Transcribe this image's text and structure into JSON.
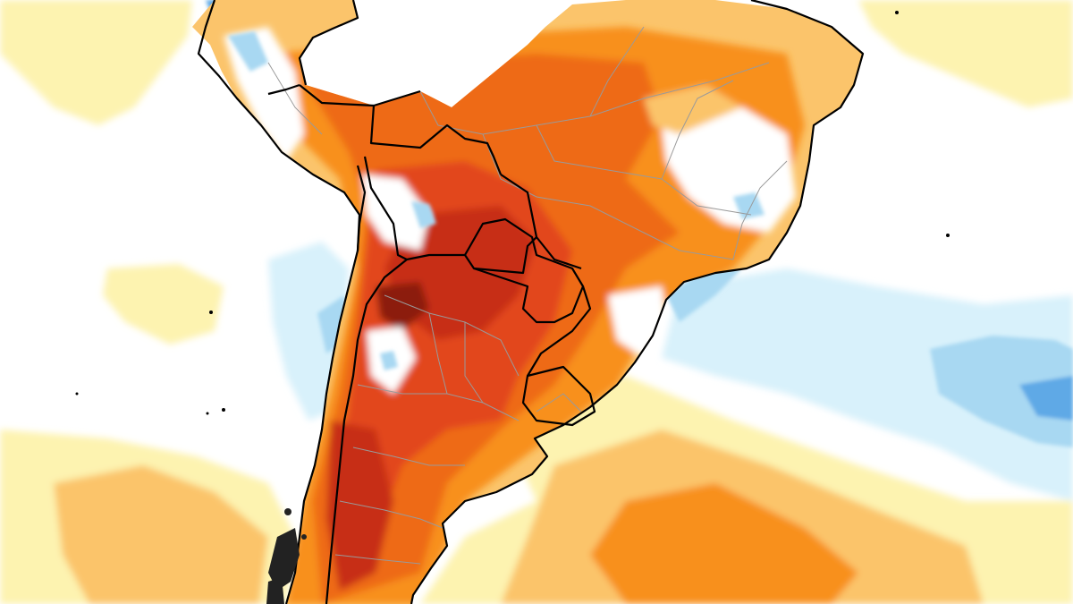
{
  "map": {
    "region": "South America",
    "colors": {
      "ocean_background": "#ffffff",
      "neutral_white": "#ffffff",
      "anomaly_pale_yellow": "#fdf3b0",
      "anomaly_light_orange": "#fbc46b",
      "anomaly_orange": "#f8901e",
      "anomaly_dark_orange": "#ee6a12",
      "anomaly_red_orange": "#e2461c",
      "anomaly_red": "#c72d16",
      "anomaly_dark_red": "#8c1c10",
      "anomaly_pale_blue": "#d8f1fb",
      "anomaly_light_blue": "#a8d8f2",
      "anomaly_blue": "#5fa9e6",
      "country_border": "#000000",
      "state_border": "#9a9a9a"
    },
    "features": [
      "country-borders",
      "state-borders",
      "coastline"
    ]
  }
}
